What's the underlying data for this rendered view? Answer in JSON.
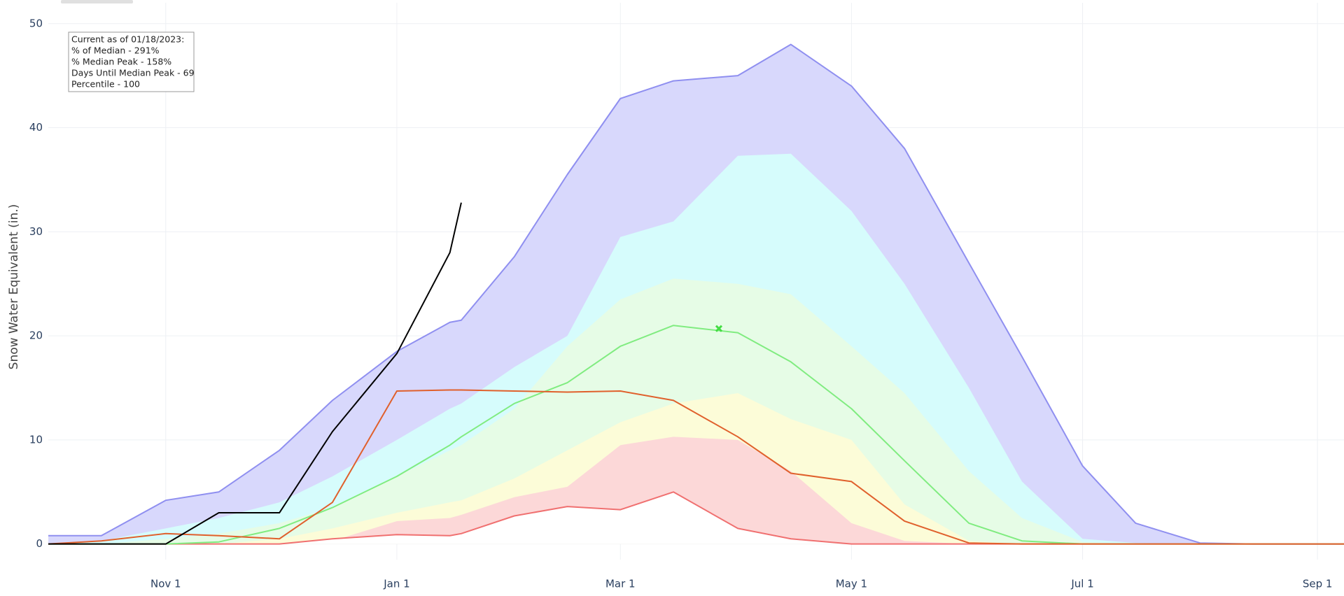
{
  "chart_data": {
    "type": "line",
    "y_label": "Snow Water Equivalent (in.)",
    "x": [
      "Oct 1",
      "Oct 15",
      "Nov 1",
      "Nov 15",
      "Dec 1",
      "Dec 15",
      "Jan 1",
      "Jan 15",
      "Jan 18",
      "Feb 1",
      "Feb 15",
      "Mar 1",
      "Mar 15",
      "Apr 1",
      "Apr 15",
      "May 1",
      "May 15",
      "Jun 1",
      "Jun 15",
      "Jul 1",
      "Jul 15",
      "Aug 1",
      "Aug 15",
      "Sep 1",
      "Sep 8"
    ],
    "xlim": [
      "Oct 1",
      "Sep 8"
    ],
    "xticks": [
      "Nov 1",
      "Jan 1",
      "Mar 1",
      "May 1",
      "Jul 1",
      "Sep 1"
    ],
    "ylim": [
      -1.5,
      52
    ],
    "yticks": [
      0,
      10,
      20,
      30,
      40,
      50
    ],
    "grid": true,
    "series": [
      {
        "color": "#8f8ff0",
        "fill": "#d8d8fc",
        "values": [
          0.8,
          0.8,
          4.2,
          5.0,
          9.0,
          13.8,
          18.5,
          21.3,
          21.5,
          27.6,
          35.5,
          42.8,
          44.5,
          45.0,
          48.0,
          44.0,
          38.0,
          27.0,
          18.0,
          7.5,
          2.0,
          0.1,
          0,
          0,
          0
        ]
      },
      {
        "color": null,
        "fill": "#d6fcfc",
        "values": [
          0,
          0.3,
          1.5,
          2.5,
          4.0,
          6.5,
          10.0,
          13.0,
          13.5,
          17.0,
          20.0,
          29.5,
          31.0,
          37.3,
          37.5,
          32.0,
          25.0,
          15.0,
          6.0,
          0.5,
          0.1,
          0,
          0,
          0,
          0
        ]
      },
      {
        "color": null,
        "fill": "#e6fce6",
        "values": [
          0,
          0,
          0.5,
          1.0,
          2.0,
          3.5,
          6.5,
          9.0,
          9.5,
          13.0,
          19.0,
          23.5,
          25.5,
          25.0,
          24.0,
          19.0,
          14.5,
          7.0,
          2.5,
          0.2,
          0,
          0,
          0,
          0,
          0
        ]
      },
      {
        "color": null,
        "fill": "#fcfcd8",
        "values": [
          0,
          0,
          0,
          0,
          0.5,
          1.5,
          3.0,
          4.0,
          4.2,
          6.3,
          9.0,
          11.7,
          13.5,
          14.5,
          12.0,
          10.0,
          3.8,
          0.3,
          0,
          0,
          0,
          0,
          0,
          0,
          0
        ]
      },
      {
        "color": null,
        "fill": "#fcd8d8",
        "values": [
          0,
          0,
          0,
          0,
          0,
          0.3,
          2.2,
          2.5,
          2.8,
          4.5,
          5.5,
          9.5,
          10.3,
          10.0,
          7.0,
          2.0,
          0.3,
          0,
          0,
          0,
          0,
          0,
          0,
          0,
          0
        ]
      },
      {
        "color": "#f07070",
        "fill": "#ffffff",
        "values": [
          0,
          0,
          0,
          0,
          0,
          0.5,
          0.9,
          0.8,
          1.0,
          2.7,
          3.6,
          3.3,
          5.0,
          1.5,
          0.5,
          0,
          0,
          0,
          0,
          0,
          0,
          0,
          0,
          0,
          0
        ]
      },
      {
        "color": "#80ec80",
        "fill": null,
        "values": [
          0,
          0,
          0,
          0.2,
          1.5,
          3.5,
          6.5,
          9.5,
          10.3,
          13.5,
          15.5,
          19.0,
          21.0,
          20.3,
          17.5,
          13.0,
          8.0,
          2.0,
          0.3,
          0,
          0,
          0,
          0,
          0,
          0
        ]
      },
      {
        "color": "#e0602c",
        "fill": null,
        "values": [
          0,
          0.3,
          1.0,
          0.8,
          0.5,
          4.0,
          14.7,
          14.8,
          14.8,
          14.7,
          14.6,
          14.7,
          13.8,
          10.3,
          6.8,
          6.0,
          2.2,
          0.1,
          0,
          0,
          0,
          0,
          0,
          0,
          0
        ]
      },
      {
        "color": "#000000",
        "fill": null,
        "values": [
          0,
          0,
          0,
          3.0,
          3.0,
          10.8,
          18.3,
          28.0,
          32.8,
          null,
          null,
          null,
          null,
          null,
          null,
          null,
          null,
          null,
          null,
          null,
          null,
          null,
          null,
          null,
          null
        ]
      }
    ],
    "marker": {
      "x": "Mar 27",
      "y": 20.7,
      "color": "#44dd44"
    },
    "annotation": [
      "Current as of 01/18/2023:",
      "% of Median - 291%",
      "% Median Peak - 158%",
      "Days Until Median Peak - 69",
      "Percentile - 100"
    ]
  }
}
